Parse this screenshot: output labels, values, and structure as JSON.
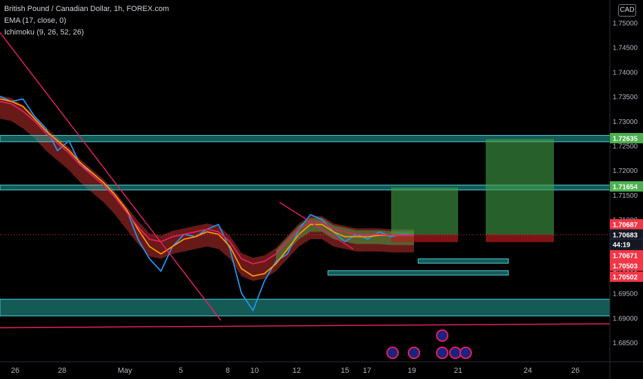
{
  "header": {
    "symbol_line": "British Pound / Canadian Dollar, 1h, FOREX.com",
    "indicator_ema": "EMA (17, close, 0)",
    "indicator_ichimoku": "Ichimoku (9, 26, 52, 26)",
    "currency_badge": "CAD"
  },
  "colors": {
    "background": "#000000",
    "axis_text": "#b2b5be",
    "zone_fill": "#26a69a",
    "zone_border": "#4dd0e1",
    "price_blue": "#2196f3",
    "ema_orange": "#ff9800",
    "ichimoku_pink": "#e91e63",
    "trendline": "#e91e63",
    "target_green": "#43a047",
    "stop_red": "#b71c1c",
    "price_tag_green": "#4caf50",
    "price_tag_red": "#f23645",
    "time_tag": "#131722"
  },
  "chart_data": {
    "type": "line",
    "title": "British Pound / Canadian Dollar, 1h, FOREX.com",
    "x_ticks": [
      "26",
      "28",
      "May",
      "5",
      "8",
      "10",
      "12",
      "15",
      "17",
      "19",
      "21",
      "24",
      "26"
    ],
    "y_ticks": [
      "1.75000",
      "1.74500",
      "1.74000",
      "1.73500",
      "1.73000",
      "1.72500",
      "1.72000",
      "1.71500",
      "1.71000",
      "1.70500",
      "1.70000",
      "1.69500",
      "1.69000",
      "1.68500"
    ],
    "ylim": [
      1.6825,
      1.7525
    ],
    "price_labels": [
      {
        "text": "1.72635",
        "value": 1.72635,
        "color": "#4caf50"
      },
      {
        "text": "1.71654",
        "value": 1.71654,
        "color": "#4caf50"
      },
      {
        "text": "1.70687",
        "value": 1.70687,
        "color": "#f23645"
      },
      {
        "text": "1.70683",
        "value": 1.70683,
        "color": "#131722"
      },
      {
        "text": "44:19",
        "value": 1.7054,
        "color": "#131722"
      },
      {
        "text": "1.70671",
        "value": 1.70671,
        "color": "#f23645"
      },
      {
        "text": "1.70503",
        "value": 1.70503,
        "color": "#f23645"
      },
      {
        "text": "1.70502",
        "value": 1.70502,
        "color": "#f23645"
      }
    ],
    "zones": [
      {
        "x_start": "Apr 24",
        "x_end": "May 26",
        "y_low": 1.7258,
        "y_high": 1.7271
      },
      {
        "x_start": "Apr 24",
        "x_end": "May 24",
        "y_low": 1.716,
        "y_high": 1.717
      },
      {
        "x_start": "May 14",
        "x_end": "May 18",
        "y_low": 1.7011,
        "y_high": 1.702
      },
      {
        "x_start": "May 10",
        "x_end": "May 18",
        "y_low": 1.6987,
        "y_high": 1.6996
      },
      {
        "x_start": "Apr 24",
        "x_end": "May 27",
        "y_low": 1.6904,
        "y_high": 1.6938
      }
    ],
    "trade_setups": [
      {
        "entry": 1.7069,
        "target": 1.7165,
        "stop": 1.7054
      },
      {
        "entry": 1.7069,
        "target": 1.72635,
        "stop": 1.7054
      }
    ],
    "series": [
      {
        "name": "price",
        "values": [
          1.735,
          1.734,
          1.7345,
          1.731,
          1.7285,
          1.724,
          1.726,
          1.721,
          1.7195,
          1.7175,
          1.715,
          1.712,
          1.706,
          1.702,
          1.6995,
          1.7045,
          1.707,
          1.7065,
          1.708,
          1.709,
          1.704,
          1.695,
          1.6915,
          1.6975,
          1.7015,
          1.703,
          1.708,
          1.711,
          1.71,
          1.7075,
          1.7055,
          1.707,
          1.706,
          1.7075,
          1.7065,
          1.707,
          1.7068
        ]
      },
      {
        "name": "ema",
        "values": [
          1.7345,
          1.734,
          1.733,
          1.7305,
          1.728,
          1.726,
          1.724,
          1.7215,
          1.7195,
          1.7175,
          1.715,
          1.712,
          1.708,
          1.7045,
          1.703,
          1.7045,
          1.706,
          1.7065,
          1.7075,
          1.707,
          1.7045,
          1.7,
          1.6985,
          1.699,
          1.701,
          1.704,
          1.707,
          1.709,
          1.709,
          1.7075,
          1.7065,
          1.7065,
          1.7065,
          1.7068,
          1.7068,
          1.7068,
          1.7068
        ]
      },
      {
        "name": "ichimoku_base",
        "values": [
          1.734,
          1.7335,
          1.732,
          1.73,
          1.7275,
          1.7255,
          1.7235,
          1.721,
          1.719,
          1.717,
          1.7145,
          1.7115,
          1.7085,
          1.706,
          1.7055,
          1.7065,
          1.707,
          1.7075,
          1.708,
          1.7075,
          1.7055,
          1.702,
          1.701,
          1.7015,
          1.703,
          1.7055,
          1.708,
          1.7095,
          1.7095,
          1.708,
          1.7075,
          1.707,
          1.707,
          1.707,
          1.7068,
          1.7068,
          1.7068
        ]
      }
    ]
  }
}
